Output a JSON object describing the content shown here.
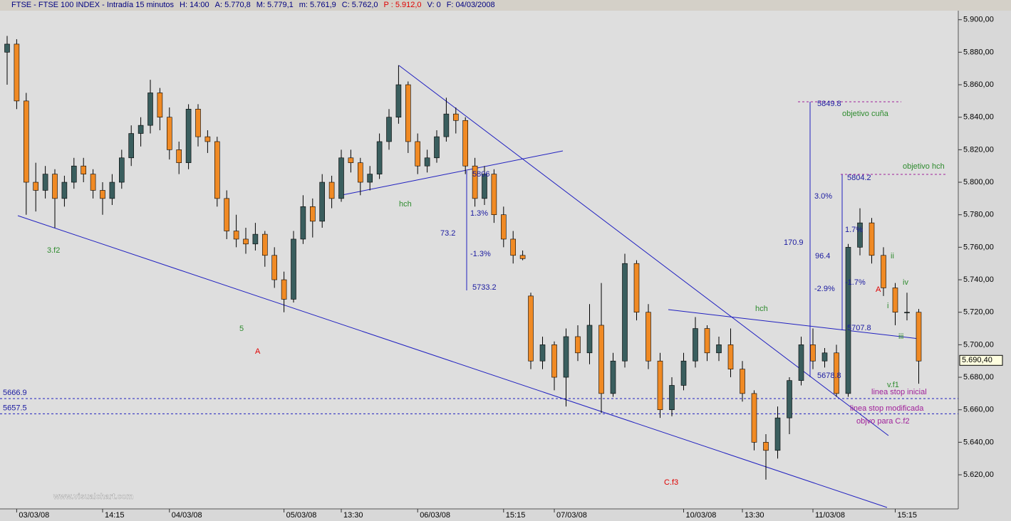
{
  "chart_data": {
    "type": "candlestick",
    "header": [
      {
        "text": "FTSE - FTSE 100 INDEX - Intradía 15 minutos"
      },
      {
        "text": "H: 14:00"
      },
      {
        "text": "A: 5.770,8"
      },
      {
        "text": "M: 5.779,1"
      },
      {
        "text": "m: 5.761,9"
      },
      {
        "text": "C: 5.762,0"
      },
      {
        "text": "P : 5.912,0",
        "color": "#e00000"
      },
      {
        "text": "V: 0"
      },
      {
        "text": "F: 04/03/2008"
      }
    ],
    "up_color": "#3a5e5e",
    "down_color": "#f08a24",
    "grid": false,
    "ylim": [
      5599,
      5906
    ],
    "yticks": [
      {
        "value": 5620,
        "label": "5.620,00"
      },
      {
        "value": 5640,
        "label": "5.640,00"
      },
      {
        "value": 5660,
        "label": "5.660,00"
      },
      {
        "value": 5680,
        "label": "5.680,00"
      },
      {
        "value": 5700,
        "label": "5.700,00"
      },
      {
        "value": 5720,
        "label": "5.720,00"
      },
      {
        "value": 5740,
        "label": "5.740,00"
      },
      {
        "value": 5760,
        "label": "5.760,00"
      },
      {
        "value": 5780,
        "label": "5.780,00"
      },
      {
        "value": 5800,
        "label": "5.800,00"
      },
      {
        "value": 5820,
        "label": "5.820,00"
      },
      {
        "value": 5840,
        "label": "5.840,00"
      },
      {
        "value": 5860,
        "label": "5.860,00"
      },
      {
        "value": 5880,
        "label": "5.880,00"
      },
      {
        "value": 5900,
        "label": "5.900,00"
      }
    ],
    "categories": [
      null,
      "03/03/08",
      null,
      null,
      null,
      null,
      null,
      null,
      null,
      null,
      "14:15",
      null,
      null,
      null,
      null,
      null,
      null,
      "04/03/08",
      null,
      null,
      null,
      null,
      null,
      null,
      null,
      null,
      null,
      null,
      null,
      "05/03/08",
      null,
      null,
      null,
      null,
      null,
      "13:30",
      null,
      null,
      null,
      null,
      null,
      null,
      null,
      "06/03/08",
      null,
      null,
      null,
      null,
      null,
      null,
      null,
      null,
      "15:15",
      null,
      null,
      null,
      null,
      "07/03/08",
      null,
      null,
      null,
      null,
      null,
      null,
      null,
      null,
      null,
      null,
      "10/03/08",
      null,
      null,
      null,
      null,
      "13:30",
      null,
      null,
      null,
      null,
      null,
      "11/03/08",
      null,
      null,
      null,
      null,
      null,
      null,
      "15:15",
      null,
      null
    ],
    "values": [
      [
        5880,
        5890,
        5860,
        5885
      ],
      [
        5885,
        5888,
        5845,
        5850
      ],
      [
        5850,
        5855,
        5780,
        5800
      ],
      [
        5800,
        5812,
        5782,
        5795
      ],
      [
        5795,
        5810,
        5790,
        5805
      ],
      [
        5805,
        5808,
        5772,
        5790
      ],
      [
        5790,
        5804,
        5785,
        5800
      ],
      [
        5800,
        5815,
        5796,
        5810
      ],
      [
        5810,
        5815,
        5800,
        5805
      ],
      [
        5805,
        5808,
        5790,
        5795
      ],
      [
        5795,
        5800,
        5780,
        5790
      ],
      [
        5790,
        5805,
        5786,
        5800
      ],
      [
        5800,
        5820,
        5796,
        5815
      ],
      [
        5815,
        5835,
        5810,
        5830
      ],
      [
        5830,
        5840,
        5822,
        5835
      ],
      [
        5835,
        5863,
        5830,
        5855
      ],
      [
        5855,
        5858,
        5832,
        5840
      ],
      [
        5840,
        5846,
        5814,
        5820
      ],
      [
        5820,
        5825,
        5805,
        5812
      ],
      [
        5812,
        5848,
        5808,
        5845
      ],
      [
        5845,
        5848,
        5822,
        5828
      ],
      [
        5828,
        5832,
        5818,
        5825
      ],
      [
        5825,
        5828,
        5785,
        5790
      ],
      [
        5790,
        5795,
        5765,
        5770
      ],
      [
        5770,
        5780,
        5760,
        5765
      ],
      [
        5765,
        5772,
        5756,
        5762
      ],
      [
        5762,
        5775,
        5758,
        5768
      ],
      [
        5768,
        5770,
        5748,
        5755
      ],
      [
        5755,
        5760,
        5735,
        5740
      ],
      [
        5740,
        5745,
        5720,
        5728
      ],
      [
        5728,
        5770,
        5726,
        5765
      ],
      [
        5765,
        5792,
        5762,
        5785
      ],
      [
        5785,
        5790,
        5766,
        5776
      ],
      [
        5776,
        5805,
        5772,
        5800
      ],
      [
        5800,
        5804,
        5784,
        5790
      ],
      [
        5790,
        5820,
        5788,
        5815
      ],
      [
        5815,
        5820,
        5806,
        5812
      ],
      [
        5812,
        5815,
        5792,
        5800
      ],
      [
        5800,
        5810,
        5795,
        5805
      ],
      [
        5805,
        5830,
        5802,
        5825
      ],
      [
        5825,
        5845,
        5820,
        5840
      ],
      [
        5840,
        5872,
        5836,
        5860
      ],
      [
        5860,
        5862,
        5818,
        5825
      ],
      [
        5825,
        5830,
        5805,
        5810
      ],
      [
        5810,
        5820,
        5806,
        5815
      ],
      [
        5815,
        5832,
        5812,
        5828
      ],
      [
        5828,
        5852,
        5825,
        5842
      ],
      [
        5842,
        5846,
        5830,
        5838
      ],
      [
        5838,
        5840,
        5805,
        5810
      ],
      [
        5810,
        5815,
        5785,
        5790
      ],
      [
        5790,
        5810,
        5786,
        5805
      ],
      [
        5805,
        5808,
        5775,
        5780
      ],
      [
        5780,
        5785,
        5760,
        5765
      ],
      [
        5765,
        5770,
        5750,
        5755
      ],
      [
        5755,
        5758,
        5752,
        5753
      ],
      [
        5730,
        5732,
        5685,
        5690
      ],
      [
        5690,
        5705,
        5685,
        5700
      ],
      [
        5700,
        5702,
        5672,
        5680
      ],
      [
        5680,
        5710,
        5662,
        5705
      ],
      [
        5705,
        5712,
        5690,
        5695
      ],
      [
        5695,
        5725,
        5688,
        5712
      ],
      [
        5712,
        5738,
        5658,
        5670
      ],
      [
        5670,
        5695,
        5668,
        5690
      ],
      [
        5690,
        5756,
        5686,
        5750
      ],
      [
        5750,
        5752,
        5715,
        5720
      ],
      [
        5720,
        5725,
        5685,
        5690
      ],
      [
        5690,
        5695,
        5655,
        5660
      ],
      [
        5660,
        5680,
        5656,
        5675
      ],
      [
        5675,
        5695,
        5672,
        5690
      ],
      [
        5690,
        5717,
        5686,
        5710
      ],
      [
        5710,
        5712,
        5690,
        5695
      ],
      [
        5695,
        5705,
        5690,
        5700
      ],
      [
        5700,
        5710,
        5680,
        5685
      ],
      [
        5685,
        5690,
        5665,
        5670
      ],
      [
        5670,
        5672,
        5635,
        5640
      ],
      [
        5640,
        5645,
        5617,
        5635
      ],
      [
        5635,
        5662,
        5630,
        5655
      ],
      [
        5655,
        5680,
        5645,
        5678
      ],
      [
        5678,
        5705,
        5675,
        5700
      ],
      [
        5700,
        5710,
        5685,
        5690
      ],
      [
        5690,
        5698,
        5686,
        5695
      ],
      [
        5695,
        5700,
        5668,
        5670
      ],
      [
        5670,
        5762,
        5668,
        5760
      ],
      [
        5760,
        5784,
        5755,
        5775
      ],
      [
        5775,
        5778,
        5750,
        5755
      ],
      [
        5755,
        5760,
        5730,
        5735
      ],
      [
        5735,
        5738,
        5712,
        5720
      ],
      [
        5720,
        5732,
        5715,
        5720
      ],
      [
        5720,
        5722,
        5676,
        5690
      ]
    ],
    "levels": [
      5666.9,
      5657.5
    ],
    "last_price": {
      "value": 5690.4,
      "label": "5.690,40"
    },
    "annotations": [
      {
        "text": "3.f2",
        "color": "#2e8b2e"
      },
      {
        "text": "5",
        "color": "#2e8b2e"
      },
      {
        "text": "A",
        "color": "#e00000"
      },
      {
        "text": "hch",
        "color": "#2e8b2e"
      },
      {
        "text": "1.3%",
        "color": "#1a1aa0"
      },
      {
        "text": "73.2",
        "color": "#1a1aa0"
      },
      {
        "text": "-1.3%",
        "color": "#1a1aa0"
      },
      {
        "text": "5733.2",
        "color": "#1a1aa0"
      },
      {
        "text": "5806",
        "color": "#1a1aa0"
      },
      {
        "text": "C.f3",
        "color": "#e00000"
      },
      {
        "text": "hch",
        "color": "#2e8b2e"
      },
      {
        "text": "5849.8",
        "color": "#1a1aa0"
      },
      {
        "text": "objetivo cuña",
        "color": "#2e8b2e"
      },
      {
        "text": "3.0%",
        "color": "#1a1aa0"
      },
      {
        "text": "170.9",
        "color": "#1a1aa0"
      },
      {
        "text": "96.4",
        "color": "#1a1aa0"
      },
      {
        "text": "-2.9%",
        "color": "#1a1aa0"
      },
      {
        "text": "5804.2",
        "color": "#1a1aa0"
      },
      {
        "text": "objetivo hch",
        "color": "#2e8b2e"
      },
      {
        "text": "1.7%",
        "color": "#1a1aa0"
      },
      {
        "text": "-1.7%",
        "color": "#1a1aa0"
      },
      {
        "text": "5707.8",
        "color": "#1a1aa0"
      },
      {
        "text": "5678.8",
        "color": "#1a1aa0"
      },
      {
        "text": "ii",
        "color": "#2e8b2e"
      },
      {
        "text": "A",
        "color": "#e00000"
      },
      {
        "text": "iv",
        "color": "#2e8b2e"
      },
      {
        "text": "i",
        "color": "#2e8b2e"
      },
      {
        "text": "iii",
        "color": "#2e8b2e"
      },
      {
        "text": "v.f1",
        "color": "#2e8b2e"
      },
      {
        "text": "linea stop inicial",
        "color": "#a0209a"
      },
      {
        "text": "linea stop modificada",
        "color": "#a0209a"
      },
      {
        "text": "objvo para C.f2",
        "color": "#a0209a"
      }
    ],
    "watermark": "www.visualchart.com"
  }
}
